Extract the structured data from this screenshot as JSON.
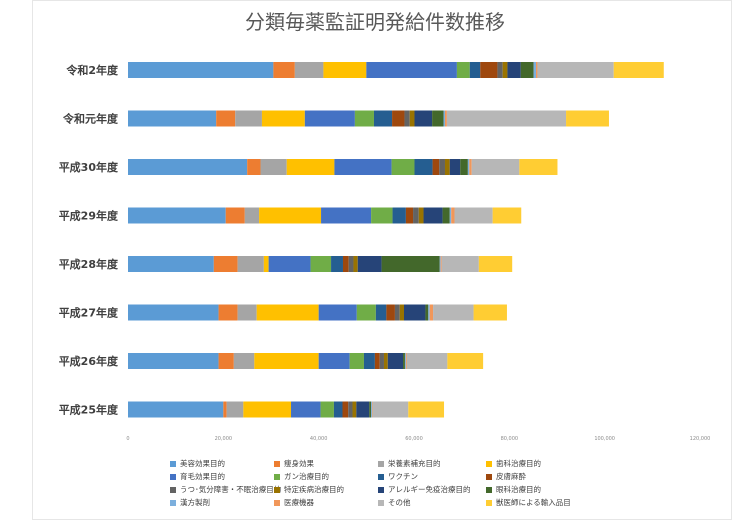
{
  "chart_data": {
    "type": "bar",
    "orientation": "horizontal",
    "stacked": true,
    "title": "分類毎薬監証明発給件数推移",
    "xlim": [
      0,
      120000
    ],
    "x_ticks": [
      0,
      20000,
      40000,
      60000,
      80000,
      100000,
      120000
    ],
    "x_tick_labels": [
      "0",
      "20,000",
      "40,000",
      "60,000",
      "80,000",
      "100,000",
      "120,000"
    ],
    "categories": [
      "令和2年度",
      "令和元年度",
      "平成30年度",
      "平成29年度",
      "平成28年度",
      "平成27年度",
      "平成26年度",
      "平成25年度"
    ],
    "grid": false,
    "legend_position": "bottom",
    "series": [
      {
        "name": "美容効果目的",
        "color": "#5b9bd5",
        "values": [
          30500,
          18500,
          25000,
          20500,
          18000,
          19000,
          19000,
          20000
        ]
      },
      {
        "name": "痩身効果",
        "color": "#ed7d31",
        "values": [
          4500,
          4000,
          2800,
          4000,
          5000,
          4000,
          3200,
          700
        ]
      },
      {
        "name": "栄養素補充目的",
        "color": "#a5a5a5",
        "values": [
          6000,
          5600,
          5500,
          3000,
          5500,
          4000,
          4300,
          3500
        ]
      },
      {
        "name": "歯科治療目的",
        "color": "#ffc000",
        "values": [
          9000,
          9000,
          10000,
          13000,
          1000,
          13000,
          13500,
          10000
        ]
      },
      {
        "name": "育毛効果目的",
        "color": "#4472c4",
        "values": [
          19000,
          10500,
          12000,
          10500,
          8800,
          8000,
          6500,
          6200
        ]
      },
      {
        "name": "ガン治療目的",
        "color": "#70ad47",
        "values": [
          2700,
          4000,
          4800,
          4500,
          4300,
          4000,
          3000,
          2800
        ]
      },
      {
        "name": "ワクチン",
        "color": "#255e91",
        "values": [
          2200,
          3800,
          3800,
          2800,
          2500,
          2200,
          2300,
          1800
        ]
      },
      {
        "name": "皮膚麻酔",
        "color": "#9e480e",
        "values": [
          3600,
          2600,
          1400,
          1500,
          1200,
          1800,
          1000,
          1200
        ]
      },
      {
        "name": "うつ･気分障害・不眠治療目的",
        "color": "#636363",
        "values": [
          1100,
          1100,
          1200,
          1200,
          1000,
          1000,
          900,
          900
        ]
      },
      {
        "name": "特定疾病治療目的",
        "color": "#997300",
        "values": [
          1000,
          1000,
          1000,
          1000,
          900,
          900,
          800,
          800
        ]
      },
      {
        "name": "アレルギー免疫治療目的",
        "color": "#264478",
        "values": [
          2800,
          3700,
          2200,
          4000,
          5000,
          4500,
          3200,
          2700
        ]
      },
      {
        "name": "眼科治療目的",
        "color": "#43682b",
        "values": [
          2700,
          2400,
          1600,
          1500,
          12200,
          600,
          400,
          400
        ]
      },
      {
        "name": "漢方製剤",
        "color": "#7cafdd",
        "values": [
          500,
          300,
          300,
          300,
          200,
          300,
          200,
          200
        ]
      },
      {
        "name": "医療機器",
        "color": "#f1975a",
        "values": [
          300,
          400,
          500,
          700,
          200,
          700,
          200,
          100
        ]
      },
      {
        "name": "その他",
        "color": "#b7b7b7",
        "values": [
          16000,
          25000,
          10000,
          8000,
          7800,
          8500,
          8500,
          7500
        ]
      },
      {
        "name": "獣医師による輸入品目",
        "color": "#ffcd33",
        "values": [
          10500,
          9000,
          8000,
          6000,
          7000,
          7000,
          7500,
          7500
        ]
      }
    ]
  }
}
